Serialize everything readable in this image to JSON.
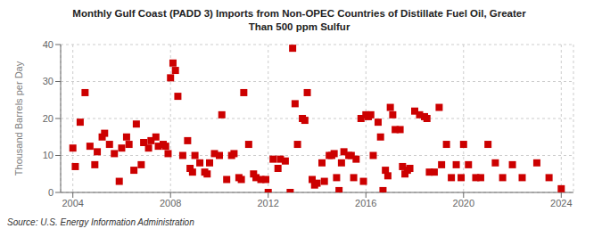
{
  "chart_data": {
    "type": "scatter",
    "title": "Monthly Gulf Coast (PADD 3) Imports from Non-OPEC Countries of Distillate Fuel Oil, Greater\nThan 500 ppm Sulfur",
    "ylabel": "Thousand Barrels per Day",
    "annotations": [
      "Source: U.S. Energy Information Administration"
    ],
    "xlim": [
      2003.5,
      2024.5
    ],
    "ylim": [
      0,
      40
    ],
    "xticks": [
      2004,
      2008,
      2012,
      2016,
      2020,
      2024
    ],
    "yticks": [
      0,
      10,
      20,
      30,
      40
    ],
    "grid": true,
    "color": "#cc0000",
    "marker": "square",
    "x": [
      2004.0,
      2004.1,
      2004.3,
      2004.5,
      2004.7,
      2004.9,
      2005.0,
      2005.2,
      2005.3,
      2005.5,
      2005.7,
      2005.9,
      2006.0,
      2006.2,
      2006.3,
      2006.5,
      2006.6,
      2006.8,
      2006.9,
      2007.1,
      2007.2,
      2007.4,
      2007.5,
      2007.7,
      2007.8,
      2007.9,
      2008.0,
      2008.1,
      2008.2,
      2008.3,
      2008.5,
      2008.7,
      2008.8,
      2008.9,
      2009.0,
      2009.2,
      2009.4,
      2009.5,
      2009.6,
      2009.8,
      2010.0,
      2010.1,
      2010.3,
      2010.5,
      2010.6,
      2010.8,
      2010.9,
      2011.0,
      2011.2,
      2011.4,
      2011.5,
      2011.7,
      2011.9,
      2012.0,
      2012.2,
      2012.4,
      2012.5,
      2012.7,
      2012.9,
      2013.0,
      2013.1,
      2013.2,
      2013.4,
      2013.5,
      2013.6,
      2013.8,
      2013.9,
      2014.0,
      2014.2,
      2014.3,
      2014.5,
      2014.6,
      2014.7,
      2014.8,
      2014.9,
      2015.0,
      2015.1,
      2015.3,
      2015.4,
      2015.5,
      2015.6,
      2015.8,
      2015.9,
      2016.0,
      2016.1,
      2016.2,
      2016.3,
      2016.5,
      2016.6,
      2016.7,
      2016.8,
      2016.9,
      2017.0,
      2017.1,
      2017.2,
      2017.4,
      2017.5,
      2017.6,
      2017.7,
      2017.8,
      2018.0,
      2018.2,
      2018.4,
      2018.5,
      2018.6,
      2018.8,
      2019.0,
      2019.1,
      2019.3,
      2019.5,
      2019.7,
      2019.9,
      2020.0,
      2020.2,
      2020.5,
      2020.7,
      2021.0,
      2021.3,
      2021.6,
      2022.0,
      2022.4,
      2023.0,
      2023.5,
      2024.0
    ],
    "values": [
      12.0,
      7.0,
      19.0,
      27.0,
      12.5,
      7.5,
      11.0,
      15.0,
      16.0,
      13.0,
      10.5,
      3.0,
      12.0,
      15.0,
      13.0,
      6.0,
      18.5,
      7.5,
      13.5,
      12.0,
      14.0,
      15.0,
      12.5,
      13.0,
      12.5,
      10.5,
      31.0,
      35.0,
      33.0,
      26.0,
      10.0,
      14.0,
      6.5,
      5.5,
      10.0,
      8.0,
      5.5,
      5.0,
      8.0,
      10.5,
      10.0,
      21.0,
      3.5,
      10.0,
      10.5,
      4.0,
      3.5,
      27.0,
      13.0,
      5.0,
      4.0,
      3.5,
      3.5,
      0.0,
      9.0,
      6.5,
      9.0,
      8.5,
      0.0,
      39.0,
      24.0,
      13.0,
      20.0,
      19.5,
      27.0,
      3.5,
      2.0,
      2.5,
      8.0,
      3.0,
      10.0,
      10.0,
      10.5,
      4.0,
      0.5,
      8.0,
      11.0,
      10.0,
      10.0,
      4.0,
      9.0,
      20.0,
      3.0,
      21.0,
      20.5,
      21.0,
      10.0,
      19.0,
      15.0,
      0.5,
      6.0,
      4.5,
      23.0,
      21.0,
      17.0,
      17.0,
      7.0,
      5.0,
      6.0,
      6.5,
      22.0,
      21.0,
      20.5,
      20.0,
      5.5,
      5.5,
      23.0,
      7.5,
      13.0,
      4.0,
      7.5,
      4.0,
      13.0,
      7.5,
      4.0,
      4.0,
      13.0,
      8.0,
      4.0,
      7.5,
      4.0,
      8.0,
      4.0,
      1.0
    ]
  }
}
